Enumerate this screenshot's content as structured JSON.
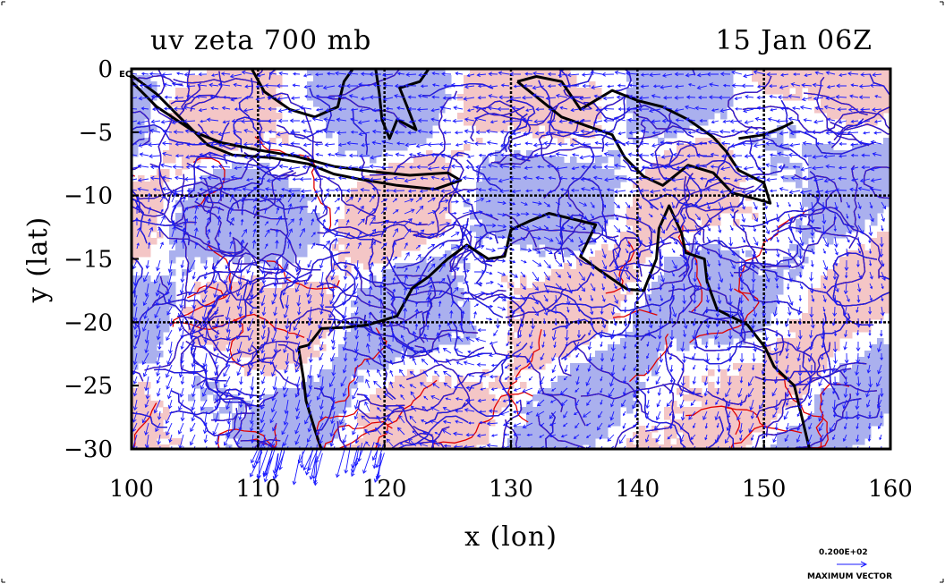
{
  "title_left": "uv zeta 700 mb",
  "title_right": "15 Jan 06Z",
  "equator_label": "EQ",
  "xlabel": "x (lon)",
  "ylabel": "y (lat)",
  "x_ticks": [
    "100",
    "110",
    "120",
    "130",
    "140",
    "150",
    "160"
  ],
  "y_ticks": [
    "0",
    "−5",
    "−10",
    "−15",
    "−20",
    "−25",
    "−30"
  ],
  "vector_legend": {
    "value": "0.200E+02",
    "label": "MAXIMUM VECTOR"
  },
  "colors": {
    "positive_fill": "#f4c6c6",
    "negative_fill": "#aab0ee",
    "positive_contour": "#e00000",
    "negative_contour": "#2020e0",
    "vector": "#1a1aff",
    "coast": "#000000",
    "grid": "#000000"
  },
  "chart_data": {
    "type": "map",
    "projection": "lat-lon",
    "xlim": [
      100,
      160
    ],
    "ylim": [
      -30,
      0
    ],
    "grid_lon": [
      110,
      120,
      130,
      140,
      150
    ],
    "grid_lat": [
      -10,
      -20
    ],
    "grid_style": "dashed",
    "fields": [
      "wind vectors u,v",
      "relative vorticity zeta"
    ],
    "level_mb": 700
  }
}
